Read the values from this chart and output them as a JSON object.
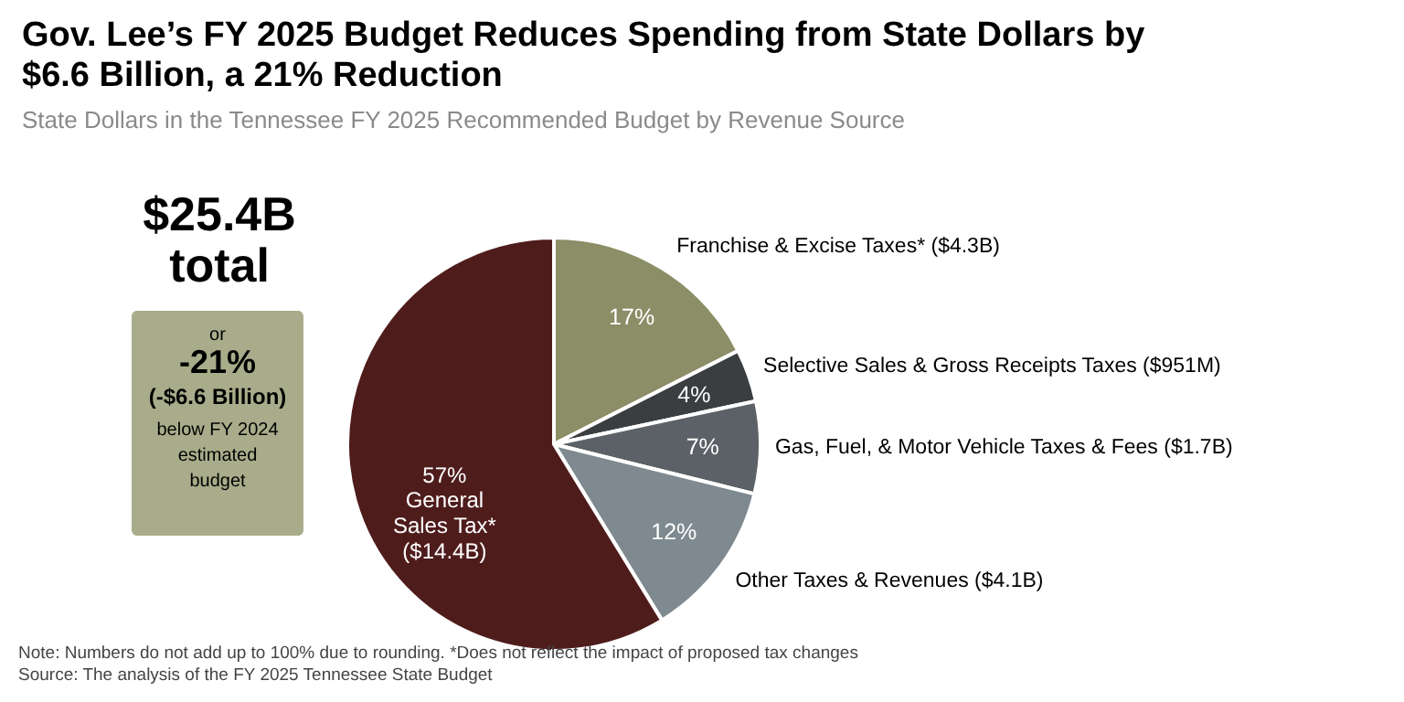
{
  "chart_data": {
    "type": "pie",
    "title": "Gov. Lee’s FY 2025 Budget Reduces Spending from State Dollars by $6.6 Billion, a 21% Reduction",
    "subtitle": "State Dollars in the Tennessee FY 2025 Recommended Budget by Revenue Source",
    "categories": [
      "Franchise & Excise Taxes* ($4.3B)",
      "Selective Sales & Gross Receipts Taxes ($951M)",
      "Gas, Fuel, & Motor Vehicle Taxes & Fees ($1.7B)",
      "Other Taxes & Revenues ($4.1B)",
      "General Sales Tax* ($14.4B)"
    ],
    "values": [
      17,
      4,
      7,
      12,
      57
    ],
    "value_labels": [
      "17%",
      "4%",
      "7%",
      "12%",
      "57%"
    ],
    "colors": [
      "#8b8e66",
      "#3b3e40",
      "#5b6166",
      "#7e8990",
      "#4f1c1c"
    ],
    "annotations": [
      "$25.4B",
      "total",
      "or",
      "-21%",
      "(-$6.6 Billion)",
      "below FY 2024",
      "estimated",
      "budget",
      "Note: Numbers do not add up to 100% due to rounding. *Does not reflect the impact of proposed tax changes",
      "Source: The analysis of the FY 2025 Tennessee State Budget"
    ]
  }
}
